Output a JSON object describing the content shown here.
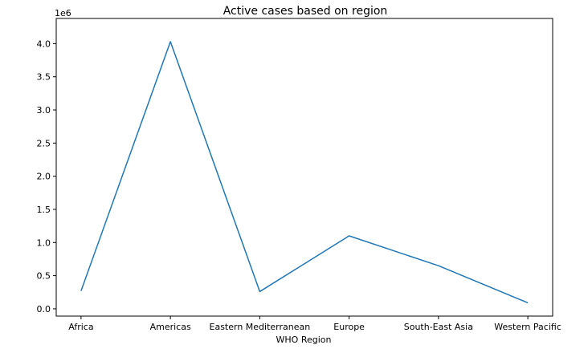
{
  "chart_data": {
    "type": "line",
    "title": "Active cases based on region",
    "xlabel": "WHO Region",
    "ylabel": "",
    "y_offset_label": "1e6",
    "categories": [
      "Africa",
      "Americas",
      "Eastern Mediterranean",
      "Europe",
      "South-East Asia",
      "Western Pacific"
    ],
    "series": [
      {
        "values": [
          0.27,
          4.03,
          0.26,
          1.1,
          0.65,
          0.09
        ]
      }
    ],
    "ylim": [
      -0.11,
      4.38
    ],
    "y_ticks": [
      0.0,
      0.5,
      1.0,
      1.5,
      2.0,
      2.5,
      3.0,
      3.5,
      4.0
    ],
    "y_tick_labels": [
      "0.0",
      "0.5",
      "1.0",
      "1.5",
      "2.0",
      "2.5",
      "3.0",
      "3.5",
      "4.0"
    ],
    "grid": false,
    "line_color": "#1f77b4"
  }
}
